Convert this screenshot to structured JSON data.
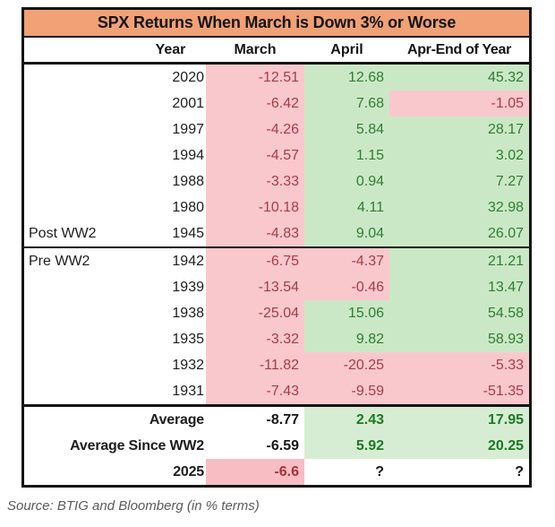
{
  "title": "SPX Returns When March is Down 3% or Worse",
  "source": "Source: BTIG and Bloomberg (in % terms)",
  "palette": {
    "title_bg": "#F0A176",
    "negative_bg": "#F9C8CD",
    "negative_text": "#A93B47",
    "positive_bg": "#CBE8C6",
    "positive_text": "#2E7D32",
    "summary_positive_bg": "#D7EDD3",
    "summary_positive_text": "#1B7A24",
    "border": "#141414",
    "source_text": "#5B5B5B"
  },
  "chart_data": {
    "type": "table",
    "title": "SPX Returns When March is Down 3% or Worse",
    "columns": [
      "Year",
      "March",
      "April",
      "Apr-End of Year"
    ],
    "sections": [
      {
        "name": "post-ww2",
        "rows": [
          {
            "label": "",
            "year": "2020",
            "march": -12.51,
            "april": 12.68,
            "apr_end": 45.32
          },
          {
            "label": "",
            "year": "2001",
            "march": -6.42,
            "april": 7.68,
            "apr_end": -1.05
          },
          {
            "label": "",
            "year": "1997",
            "march": -4.26,
            "april": 5.84,
            "apr_end": 28.17
          },
          {
            "label": "",
            "year": "1994",
            "march": -4.57,
            "april": 1.15,
            "apr_end": 3.02
          },
          {
            "label": "",
            "year": "1988",
            "march": -3.33,
            "april": 0.94,
            "apr_end": 7.27
          },
          {
            "label": "",
            "year": "1980",
            "march": -10.18,
            "april": 4.11,
            "apr_end": 32.98
          },
          {
            "label": "Post WW2",
            "year": "1945",
            "march": -4.83,
            "april": 9.04,
            "apr_end": 26.07
          }
        ]
      },
      {
        "name": "pre-ww2",
        "rows": [
          {
            "label": "Pre WW2",
            "year": "1942",
            "march": -6.75,
            "april": -4.37,
            "apr_end": 21.21
          },
          {
            "label": "",
            "year": "1939",
            "march": -13.54,
            "april": -0.46,
            "apr_end": 13.47
          },
          {
            "label": "",
            "year": "1938",
            "march": -25.04,
            "april": 15.06,
            "apr_end": 54.58
          },
          {
            "label": "",
            "year": "1935",
            "march": -3.32,
            "april": 9.82,
            "apr_end": 58.93
          },
          {
            "label": "",
            "year": "1932",
            "march": -11.82,
            "april": -20.25,
            "apr_end": -5.33
          },
          {
            "label": "",
            "year": "1931",
            "march": -7.43,
            "april": -9.59,
            "apr_end": -51.35
          }
        ]
      }
    ],
    "summary_rows": [
      {
        "label": "Average",
        "cells": [
          {
            "text": "-8.77",
            "style": "plain"
          },
          {
            "text": "2.43",
            "style": "pos-strong"
          },
          {
            "text": "17.95",
            "style": "pos-strong"
          }
        ]
      },
      {
        "label": "Average Since WW2",
        "cells": [
          {
            "text": "-6.59",
            "style": "plain"
          },
          {
            "text": "5.92",
            "style": "pos-strong"
          },
          {
            "text": "20.25",
            "style": "pos-strong"
          }
        ]
      },
      {
        "label": "2025",
        "cells": [
          {
            "text": "-6.6",
            "style": "neg-strong"
          },
          {
            "text": "?",
            "style": "plain"
          },
          {
            "text": "?",
            "style": "plain"
          }
        ]
      }
    ],
    "source": "Source: BTIG and Bloomberg (in % terms)"
  }
}
